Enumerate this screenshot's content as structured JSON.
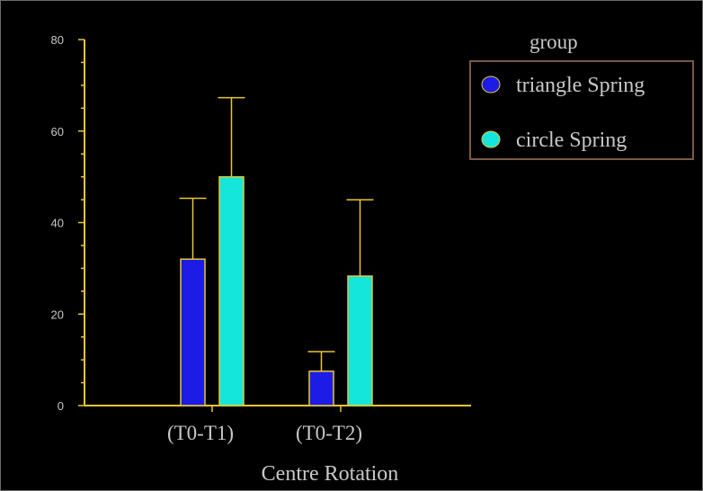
{
  "chart_data": {
    "type": "bar",
    "categories": [
      "(T0-T1)",
      "(T0-T2)"
    ],
    "series": [
      {
        "name": "triangle Spring",
        "color": "#1c1ce6",
        "values": [
          32,
          7.5
        ],
        "error": [
          13.3,
          4.3
        ]
      },
      {
        "name": "circle Spring",
        "color": "#14e6dc",
        "values": [
          50,
          28.3
        ],
        "error": [
          17.3,
          16.7
        ]
      }
    ],
    "xlabel": "Centre Rotation",
    "ylabel": "",
    "ylim": [
      0,
      80
    ],
    "yticks": [
      0,
      20,
      40,
      60,
      80
    ],
    "legend": {
      "title": "group",
      "placement": "top-right"
    },
    "colors": {
      "background": "#000000",
      "axis": "#e6c832",
      "errorbar": "#e6c832",
      "bar_outline": "#e6c832",
      "text": "#c8c8c8",
      "legend_border": "#7a5a46"
    },
    "grid": false
  }
}
